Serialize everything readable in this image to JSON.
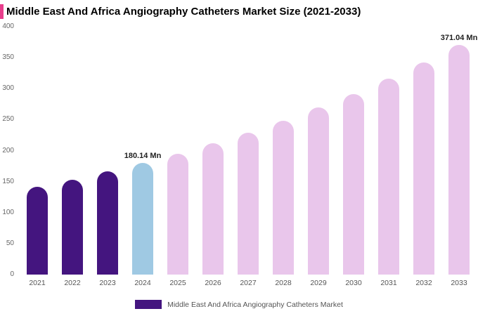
{
  "page": {
    "title": "Middle East And Africa Angiography Catheters Market Size (2021-2033)",
    "accent_color": "#e83e8c"
  },
  "chart_data": {
    "type": "bar",
    "title": "Middle East And Africa Angiography Catheters Market Size (2021-2033)",
    "xlabel": "",
    "ylabel": "",
    "ylim": [
      0,
      400
    ],
    "yticks": [
      0,
      50,
      100,
      150,
      200,
      250,
      300,
      350,
      400
    ],
    "grid": false,
    "categories": [
      "2021",
      "2022",
      "2023",
      "2024",
      "2025",
      "2026",
      "2027",
      "2028",
      "2029",
      "2030",
      "2031",
      "2032",
      "2033"
    ],
    "values": [
      141.6,
      153.4,
      166.2,
      180.14,
      195.2,
      211.5,
      229.2,
      248.4,
      269.2,
      291.7,
      316.1,
      342.5,
      371.04
    ],
    "bar_colors": [
      "#44157f",
      "#44157f",
      "#44157f",
      "#9fc9e3",
      "#e9c6eb",
      "#e9c6eb",
      "#e9c6eb",
      "#e9c6eb",
      "#e9c6eb",
      "#e9c6eb",
      "#e9c6eb",
      "#e9c6eb",
      "#e9c6eb"
    ],
    "data_labels": [
      "",
      "",
      "",
      "180.14 Mn",
      "",
      "",
      "",
      "",
      "",
      "",
      "",
      "",
      "371.04 Mn"
    ],
    "legend": {
      "position": "bottom",
      "items": [
        {
          "label": "Middle East And Africa Angiography Catheters Market",
          "color": "#44157f"
        }
      ]
    }
  }
}
